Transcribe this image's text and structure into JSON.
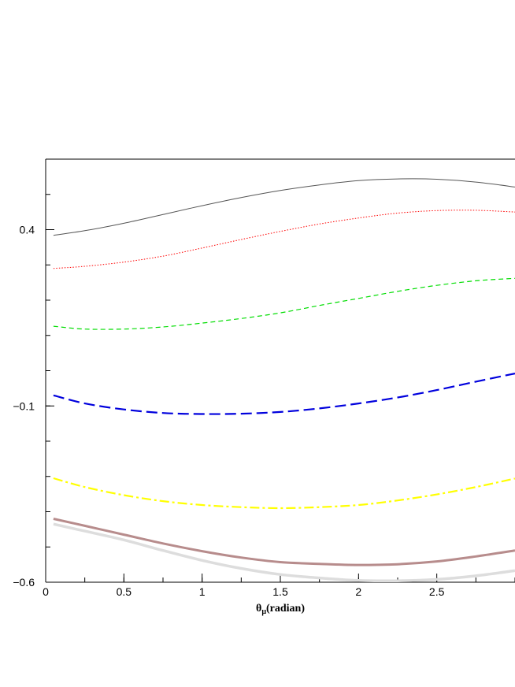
{
  "chart_data": {
    "type": "line",
    "title": "",
    "xlabel": "θ",
    "xlabel_sub": "μ",
    "xlabel_suffix": "(radian)",
    "ylabel": "",
    "xlim": [
      0,
      3.0
    ],
    "ylim": [
      -0.6,
      0.6
    ],
    "x_ticks": [
      {
        "value": 0,
        "label": "0"
      },
      {
        "value": 0.5,
        "label": "0.5"
      },
      {
        "value": 1,
        "label": "1"
      },
      {
        "value": 1.5,
        "label": "1.5"
      },
      {
        "value": 2,
        "label": "2"
      },
      {
        "value": 2.5,
        "label": "2.5"
      }
    ],
    "y_ticks": [
      {
        "value": 0.4,
        "label": "0.4"
      },
      {
        "value": -0.1,
        "label": "−0.1"
      },
      {
        "value": -0.6,
        "label": "−0.6"
      }
    ],
    "y_minor_step": 0.1,
    "x_minor_step": 0.25,
    "grid": false,
    "x": [
      0.05,
      0.25,
      0.5,
      0.75,
      1.0,
      1.25,
      1.5,
      1.75,
      2.0,
      2.25,
      2.5,
      2.75,
      3.0
    ],
    "series": [
      {
        "color": "#555555",
        "style": "solid",
        "width": 1.0,
        "values": [
          0.384,
          0.397,
          0.418,
          0.443,
          0.468,
          0.491,
          0.511,
          0.527,
          0.539,
          0.544,
          0.543,
          0.535,
          0.521
        ]
      },
      {
        "color": "#ff0000",
        "style": "dotted",
        "width": 1.0,
        "values": [
          0.29,
          0.296,
          0.308,
          0.325,
          0.348,
          0.372,
          0.395,
          0.416,
          0.433,
          0.447,
          0.454,
          0.455,
          0.45
        ]
      },
      {
        "color": "#00dd00",
        "style": "dashed",
        "width": 1.2,
        "values": [
          0.126,
          0.118,
          0.118,
          0.124,
          0.135,
          0.148,
          0.164,
          0.185,
          0.205,
          0.225,
          0.242,
          0.255,
          0.262
        ]
      },
      {
        "color": "#0000dd",
        "style": "longdash",
        "width": 2.2,
        "values": [
          -0.07,
          -0.093,
          -0.11,
          -0.12,
          -0.123,
          -0.122,
          -0.117,
          -0.107,
          -0.093,
          -0.076,
          -0.055,
          -0.031,
          -0.008
        ]
      },
      {
        "color": "#ffff00",
        "style": "dashdot",
        "width": 2.2,
        "values": [
          -0.305,
          -0.33,
          -0.353,
          -0.37,
          -0.381,
          -0.387,
          -0.39,
          -0.387,
          -0.381,
          -0.368,
          -0.351,
          -0.33,
          -0.306
        ]
      },
      {
        "color": "#b78c8c",
        "style": "solid",
        "width": 3.0,
        "values": [
          -0.42,
          -0.44,
          -0.465,
          -0.49,
          -0.512,
          -0.53,
          -0.543,
          -0.548,
          -0.551,
          -0.549,
          -0.541,
          -0.527,
          -0.51
        ]
      },
      {
        "color": "#dddddd",
        "style": "solid",
        "width": 3.5,
        "values": [
          -0.435,
          -0.455,
          -0.48,
          -0.51,
          -0.538,
          -0.561,
          -0.578,
          -0.588,
          -0.595,
          -0.596,
          -0.592,
          -0.582,
          -0.567
        ]
      }
    ]
  }
}
